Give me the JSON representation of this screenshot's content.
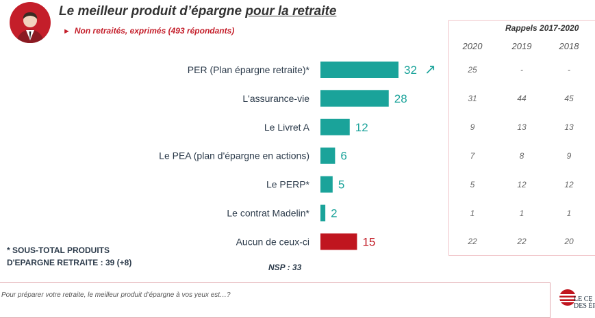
{
  "header": {
    "title_main": "Le meilleur produit d’épargne ",
    "title_underlined": "pour la retraite",
    "subtitle_marker": "►",
    "subtitle": "Non retraités, exprimés (493 répondants)"
  },
  "colors": {
    "teal": "#1aa39a",
    "red": "#c0151f",
    "brand_red": "#c41e2a"
  },
  "chart_data": {
    "type": "bar",
    "orientation": "horizontal",
    "categories": [
      "PER (Plan épargne retraite)*",
      "L'assurance-vie",
      "Le Livret A",
      "Le PEA (plan d'épargne en actions)",
      "Le PERP*",
      "Le contrat Madelin*",
      "Aucun de ceux-ci"
    ],
    "values": [
      32,
      28,
      12,
      6,
      5,
      2,
      15
    ],
    "trend_marker": "↗",
    "xlim": [
      0,
      32
    ]
  },
  "rappels": {
    "title": "Rappels 2017-2020",
    "years": [
      "2020",
      "2019",
      "2018"
    ],
    "rows": [
      [
        "25",
        "-",
        "-"
      ],
      [
        "31",
        "44",
        "45"
      ],
      [
        "9",
        "13",
        "13"
      ],
      [
        "7",
        "8",
        "9"
      ],
      [
        "5",
        "12",
        "12"
      ],
      [
        "1",
        "1",
        "1"
      ],
      [
        "22",
        "22",
        "20"
      ]
    ]
  },
  "footnote": {
    "line1": "* SOUS-TOTAL PRODUITS",
    "line2": "D'EPARGNE RETRAITE : 39 (+8)"
  },
  "nsp": "NSP : 33",
  "question": "Pour préparer votre retraite, le meilleur produit d’épargne à vos yeux est…?",
  "logo": {
    "line1": "LE CE",
    "line2": "DES ÉPARGN"
  }
}
